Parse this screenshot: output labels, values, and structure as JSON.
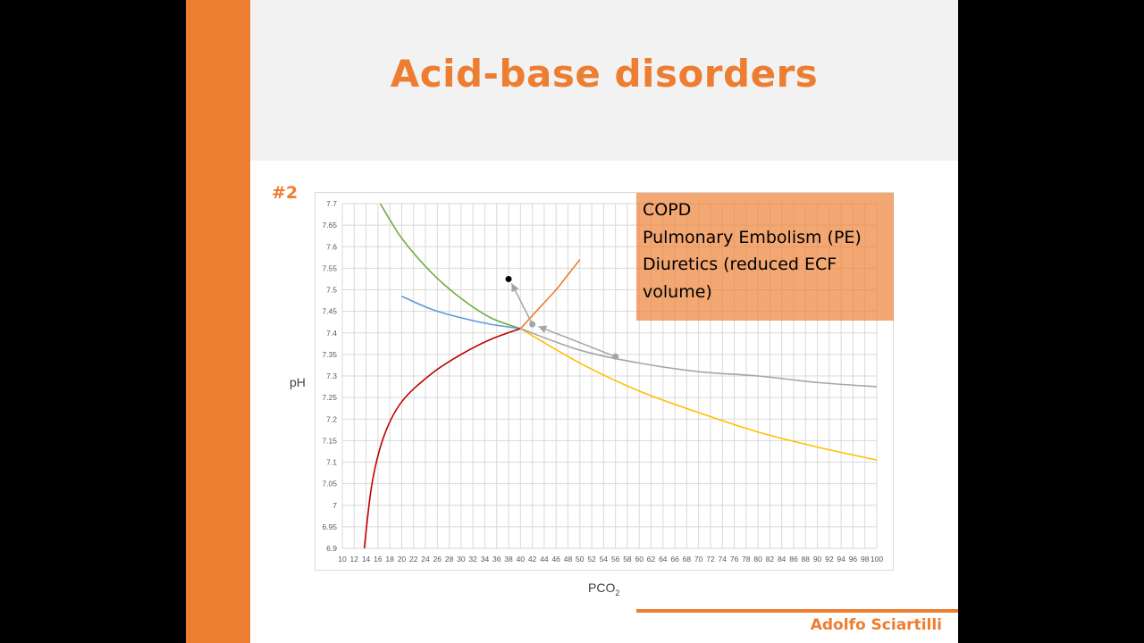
{
  "slide": {
    "title": "Acid-base disorders",
    "slide_number": "#2",
    "author": "Adolfo Sciartilli",
    "colors": {
      "accent": "#ED7D31",
      "band": "#F2F2F2"
    }
  },
  "note_box": {
    "lines": [
      "COPD",
      "Pulmonary Embolism (PE)",
      "Diuretics (reduced ECF",
      "volume)"
    ]
  },
  "chart_data": {
    "type": "line",
    "xlabel": "PCO",
    "xlabel_sub": "2",
    "ylabel": "pH",
    "xlim": [
      10,
      100
    ],
    "ylim": [
      6.9,
      7.7
    ],
    "x_ticks": [
      10,
      12,
      14,
      16,
      18,
      20,
      22,
      24,
      26,
      28,
      30,
      32,
      34,
      36,
      38,
      40,
      42,
      44,
      46,
      48,
      50,
      52,
      54,
      56,
      58,
      60,
      62,
      64,
      66,
      68,
      70,
      72,
      74,
      76,
      78,
      80,
      82,
      84,
      86,
      88,
      90,
      92,
      94,
      96,
      98,
      100
    ],
    "y_ticks": [
      6.9,
      6.95,
      7,
      7.05,
      7.1,
      7.15,
      7.2,
      7.25,
      7.3,
      7.35,
      7.4,
      7.45,
      7.5,
      7.55,
      7.6,
      7.65,
      7.7
    ],
    "grid": true,
    "series": [
      {
        "color": "#70AD47",
        "points": [
          [
            16.4,
            7.7
          ],
          [
            20,
            7.62
          ],
          [
            25,
            7.54
          ],
          [
            30,
            7.48
          ],
          [
            35,
            7.435
          ],
          [
            40,
            7.41
          ]
        ]
      },
      {
        "color": "#5B9BD5",
        "points": [
          [
            20,
            7.485
          ],
          [
            25,
            7.455
          ],
          [
            30,
            7.435
          ],
          [
            35,
            7.42
          ],
          [
            40,
            7.41
          ]
        ]
      },
      {
        "color": "#C00000",
        "points": [
          [
            13.7,
            6.9
          ],
          [
            15,
            7.05
          ],
          [
            17,
            7.16
          ],
          [
            20,
            7.24
          ],
          [
            25,
            7.305
          ],
          [
            30,
            7.35
          ],
          [
            35,
            7.385
          ],
          [
            40,
            7.41
          ]
        ]
      },
      {
        "color": "#ED7D31",
        "points": [
          [
            40,
            7.41
          ],
          [
            42,
            7.44
          ],
          [
            44,
            7.47
          ],
          [
            46,
            7.5
          ],
          [
            48,
            7.535
          ],
          [
            50,
            7.57
          ]
        ]
      },
      {
        "color": "#FFC000",
        "points": [
          [
            40,
            7.41
          ],
          [
            50,
            7.33
          ],
          [
            60,
            7.265
          ],
          [
            70,
            7.215
          ],
          [
            80,
            7.17
          ],
          [
            90,
            7.135
          ],
          [
            100,
            7.105
          ]
        ]
      },
      {
        "color": "#A5A5A5",
        "points": [
          [
            40,
            7.41
          ],
          [
            50,
            7.36
          ],
          [
            60,
            7.33
          ],
          [
            70,
            7.31
          ],
          [
            80,
            7.3
          ],
          [
            90,
            7.285
          ],
          [
            100,
            7.275
          ]
        ]
      }
    ],
    "points": [
      {
        "x": 38,
        "y": 7.525,
        "color": "#000000"
      },
      {
        "x": 42,
        "y": 7.42,
        "color": "#A5A5A5"
      },
      {
        "x": 56,
        "y": 7.345,
        "color": "#A5A5A5"
      }
    ],
    "arrows": [
      {
        "from": [
          56,
          7.345
        ],
        "to": [
          43,
          7.415
        ],
        "color": "#A5A5A5"
      },
      {
        "from": [
          42,
          7.42
        ],
        "to": [
          38.5,
          7.515
        ],
        "color": "#A5A5A5"
      }
    ]
  }
}
